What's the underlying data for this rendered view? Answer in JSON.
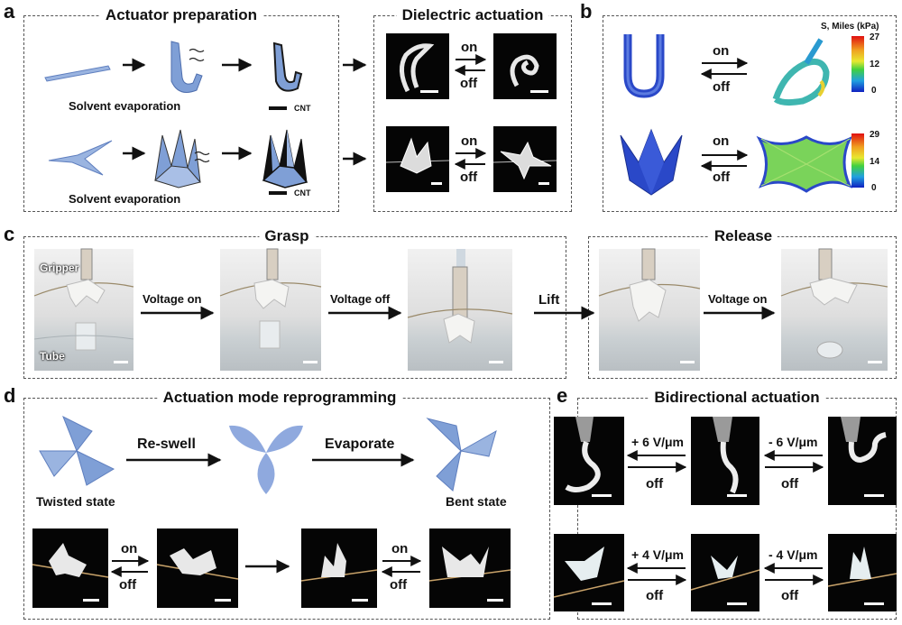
{
  "panels": {
    "a": {
      "letter": "a",
      "left_title": "Actuator preparation",
      "right_title": "Dielectric actuation",
      "caption1": "Solvent evaporation",
      "caption2": "Solvent evaporation",
      "cnt1": "CNT",
      "cnt2": "CNT",
      "on1": "on",
      "off1": "off",
      "on2": "on",
      "off2": "off"
    },
    "b": {
      "letter": "b",
      "on1": "on",
      "off1": "off",
      "on2": "on",
      "off2": "off",
      "legend_title": "S, Miles (kPa)",
      "legend1": [
        "27",
        "12",
        "0"
      ],
      "legend2": [
        "29",
        "14",
        "0"
      ]
    },
    "c": {
      "letter": "c",
      "grasp_title": "Grasp",
      "release_title": "Release",
      "gripper_label": "Gripper",
      "tube_label": "Tube",
      "voltage_on": "Voltage on",
      "voltage_off": "Voltage off",
      "lift": "Lift",
      "voltage_on2": "Voltage on"
    },
    "d": {
      "letter": "d",
      "title": "Actuation mode reprogramming",
      "reswell": "Re-swell",
      "evaporate": "Evaporate",
      "twisted": "Twisted state",
      "bent": "Bent state",
      "on1": "on",
      "off1": "off",
      "on2": "on",
      "off2": "off"
    },
    "e": {
      "letter": "e",
      "title": "Bidirectional actuation",
      "plus6": "+ 6 V/μm",
      "minus6": "- 6 V/μm",
      "plus4": "+ 4 V/μm",
      "minus4": "- 4 V/μm",
      "off1": "off",
      "off2": "off",
      "off3": "off",
      "off4": "off"
    }
  },
  "colors": {
    "film_blue": "#7f9fd6",
    "fem_blue": "#2a48c8",
    "fem_green": "#7ad35a",
    "dark_photo": "#050505"
  }
}
